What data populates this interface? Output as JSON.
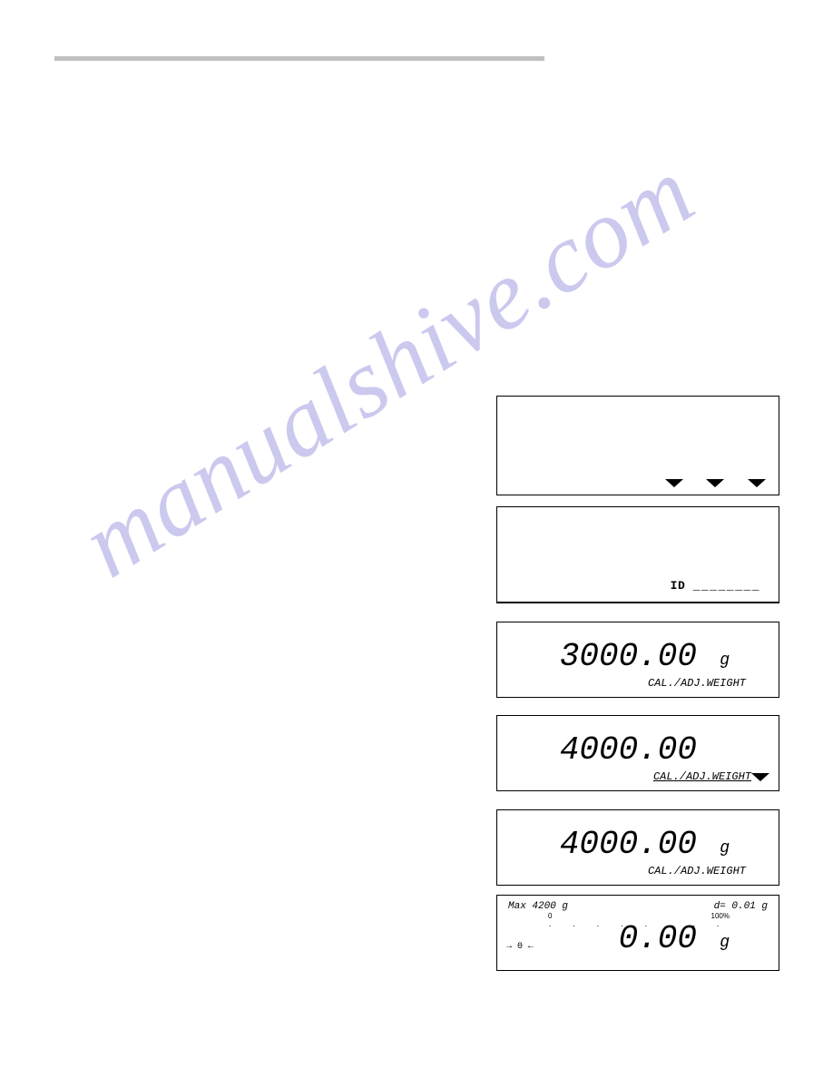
{
  "watermark": {
    "text": "manualshive.com",
    "color": "#b5b0e8",
    "fontsize": 108,
    "rotation_deg": -32,
    "opacity": 0.68
  },
  "header_bar": {
    "color": "#c0c0c0"
  },
  "box1": {
    "arrows": 3
  },
  "box2": {
    "id_label": "ID",
    "dashes": "________"
  },
  "box3": {
    "value": "3000.00",
    "unit": "g",
    "subtext": "CAL./ADJ.WEIGHT"
  },
  "box4": {
    "value": "4000.00",
    "subtext": "CAL./ADJ.WEIGHT"
  },
  "box5": {
    "value": "4000.00",
    "unit": "g",
    "subtext": "CAL./ADJ.WEIGHT"
  },
  "box6": {
    "max_label": "Max 4200 g",
    "d_label": "d= 0.01 g",
    "bar_zero": "0",
    "bar_hundred": "100%",
    "dots": ". . . . . . . . . . . . . . . .",
    "zero_indicator": "→ 0 ←",
    "value": "0.00",
    "unit": "g"
  }
}
